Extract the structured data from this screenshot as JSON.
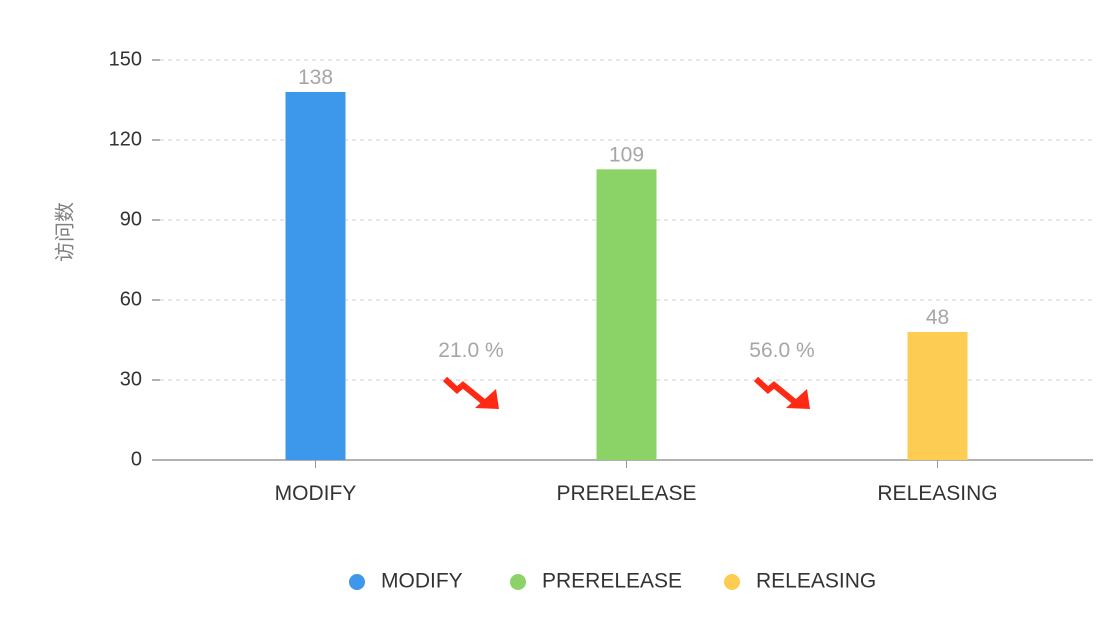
{
  "chart_data": {
    "type": "bar",
    "ylabel": "访问数",
    "xlabel": "",
    "ylim": [
      0,
      150
    ],
    "yticks": [
      0,
      30,
      60,
      90,
      120,
      150
    ],
    "grid": true,
    "categories": [
      "MODIFY",
      "PRERELEASE",
      "RELEASING"
    ],
    "values": [
      138,
      109,
      48
    ],
    "colors": [
      "#3d97ea",
      "#8bd366",
      "#fdcd53"
    ],
    "data_labels": [
      "138",
      "109",
      "48"
    ],
    "conversions": [
      {
        "label": "21.0 %",
        "icon": "trend-down-arrow-icon",
        "color": "#ff2a14"
      },
      {
        "label": "56.0 %",
        "icon": "trend-down-arrow-icon",
        "color": "#ff2a14"
      }
    ],
    "legend": {
      "position": "bottom",
      "entries": [
        "MODIFY",
        "PRERELEASE",
        "RELEASING"
      ]
    }
  }
}
